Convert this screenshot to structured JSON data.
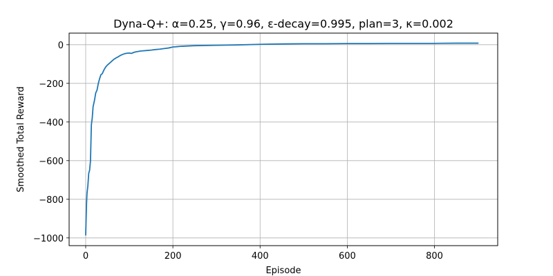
{
  "chart_data": {
    "type": "line",
    "title": "Dyna-Q+: α=0.25, γ=0.96, ε-decay=0.995, plan=3, κ=0.002",
    "xlabel": "Episode",
    "ylabel": "Smoothed Total Reward",
    "xlim": [
      -38,
      945
    ],
    "ylim": [
      -1040,
      60
    ],
    "xticks": [
      0,
      200,
      400,
      600,
      800
    ],
    "yticks": [
      -1000,
      -800,
      -600,
      -400,
      -200,
      0
    ],
    "xtick_labels": [
      "0",
      "200",
      "400",
      "600",
      "800"
    ],
    "ytick_labels": [
      "−1000",
      "−800",
      "−600",
      "−400",
      "−200",
      "0"
    ],
    "grid": true,
    "line_color": "#1f77b4",
    "series": [
      {
        "name": "Smoothed Total Reward",
        "x": [
          0,
          1,
          2,
          3,
          5,
          7,
          9,
          11,
          13,
          15,
          17,
          20,
          23,
          26,
          29,
          32,
          35,
          38,
          42,
          46,
          50,
          55,
          60,
          65,
          70,
          75,
          80,
          85,
          90,
          95,
          100,
          105,
          110,
          115,
          120,
          125,
          130,
          140,
          150,
          160,
          170,
          180,
          190,
          200,
          220,
          250,
          300,
          350,
          400,
          450,
          500,
          550,
          600,
          650,
          700,
          750,
          800,
          850,
          900
        ],
        "y": [
          -985,
          -900,
          -820,
          -770,
          -730,
          -665,
          -650,
          -600,
          -415,
          -380,
          -320,
          -290,
          -250,
          -235,
          -200,
          -175,
          -155,
          -150,
          -130,
          -115,
          -105,
          -95,
          -85,
          -75,
          -68,
          -62,
          -55,
          -50,
          -46,
          -44,
          -43,
          -45,
          -40,
          -37,
          -35,
          -33,
          -32,
          -30,
          -28,
          -25,
          -23,
          -20,
          -17,
          -12,
          -8,
          -5,
          -3,
          -1,
          2,
          4,
          5,
          5,
          6,
          6,
          7,
          7,
          7,
          8,
          8
        ]
      }
    ]
  }
}
